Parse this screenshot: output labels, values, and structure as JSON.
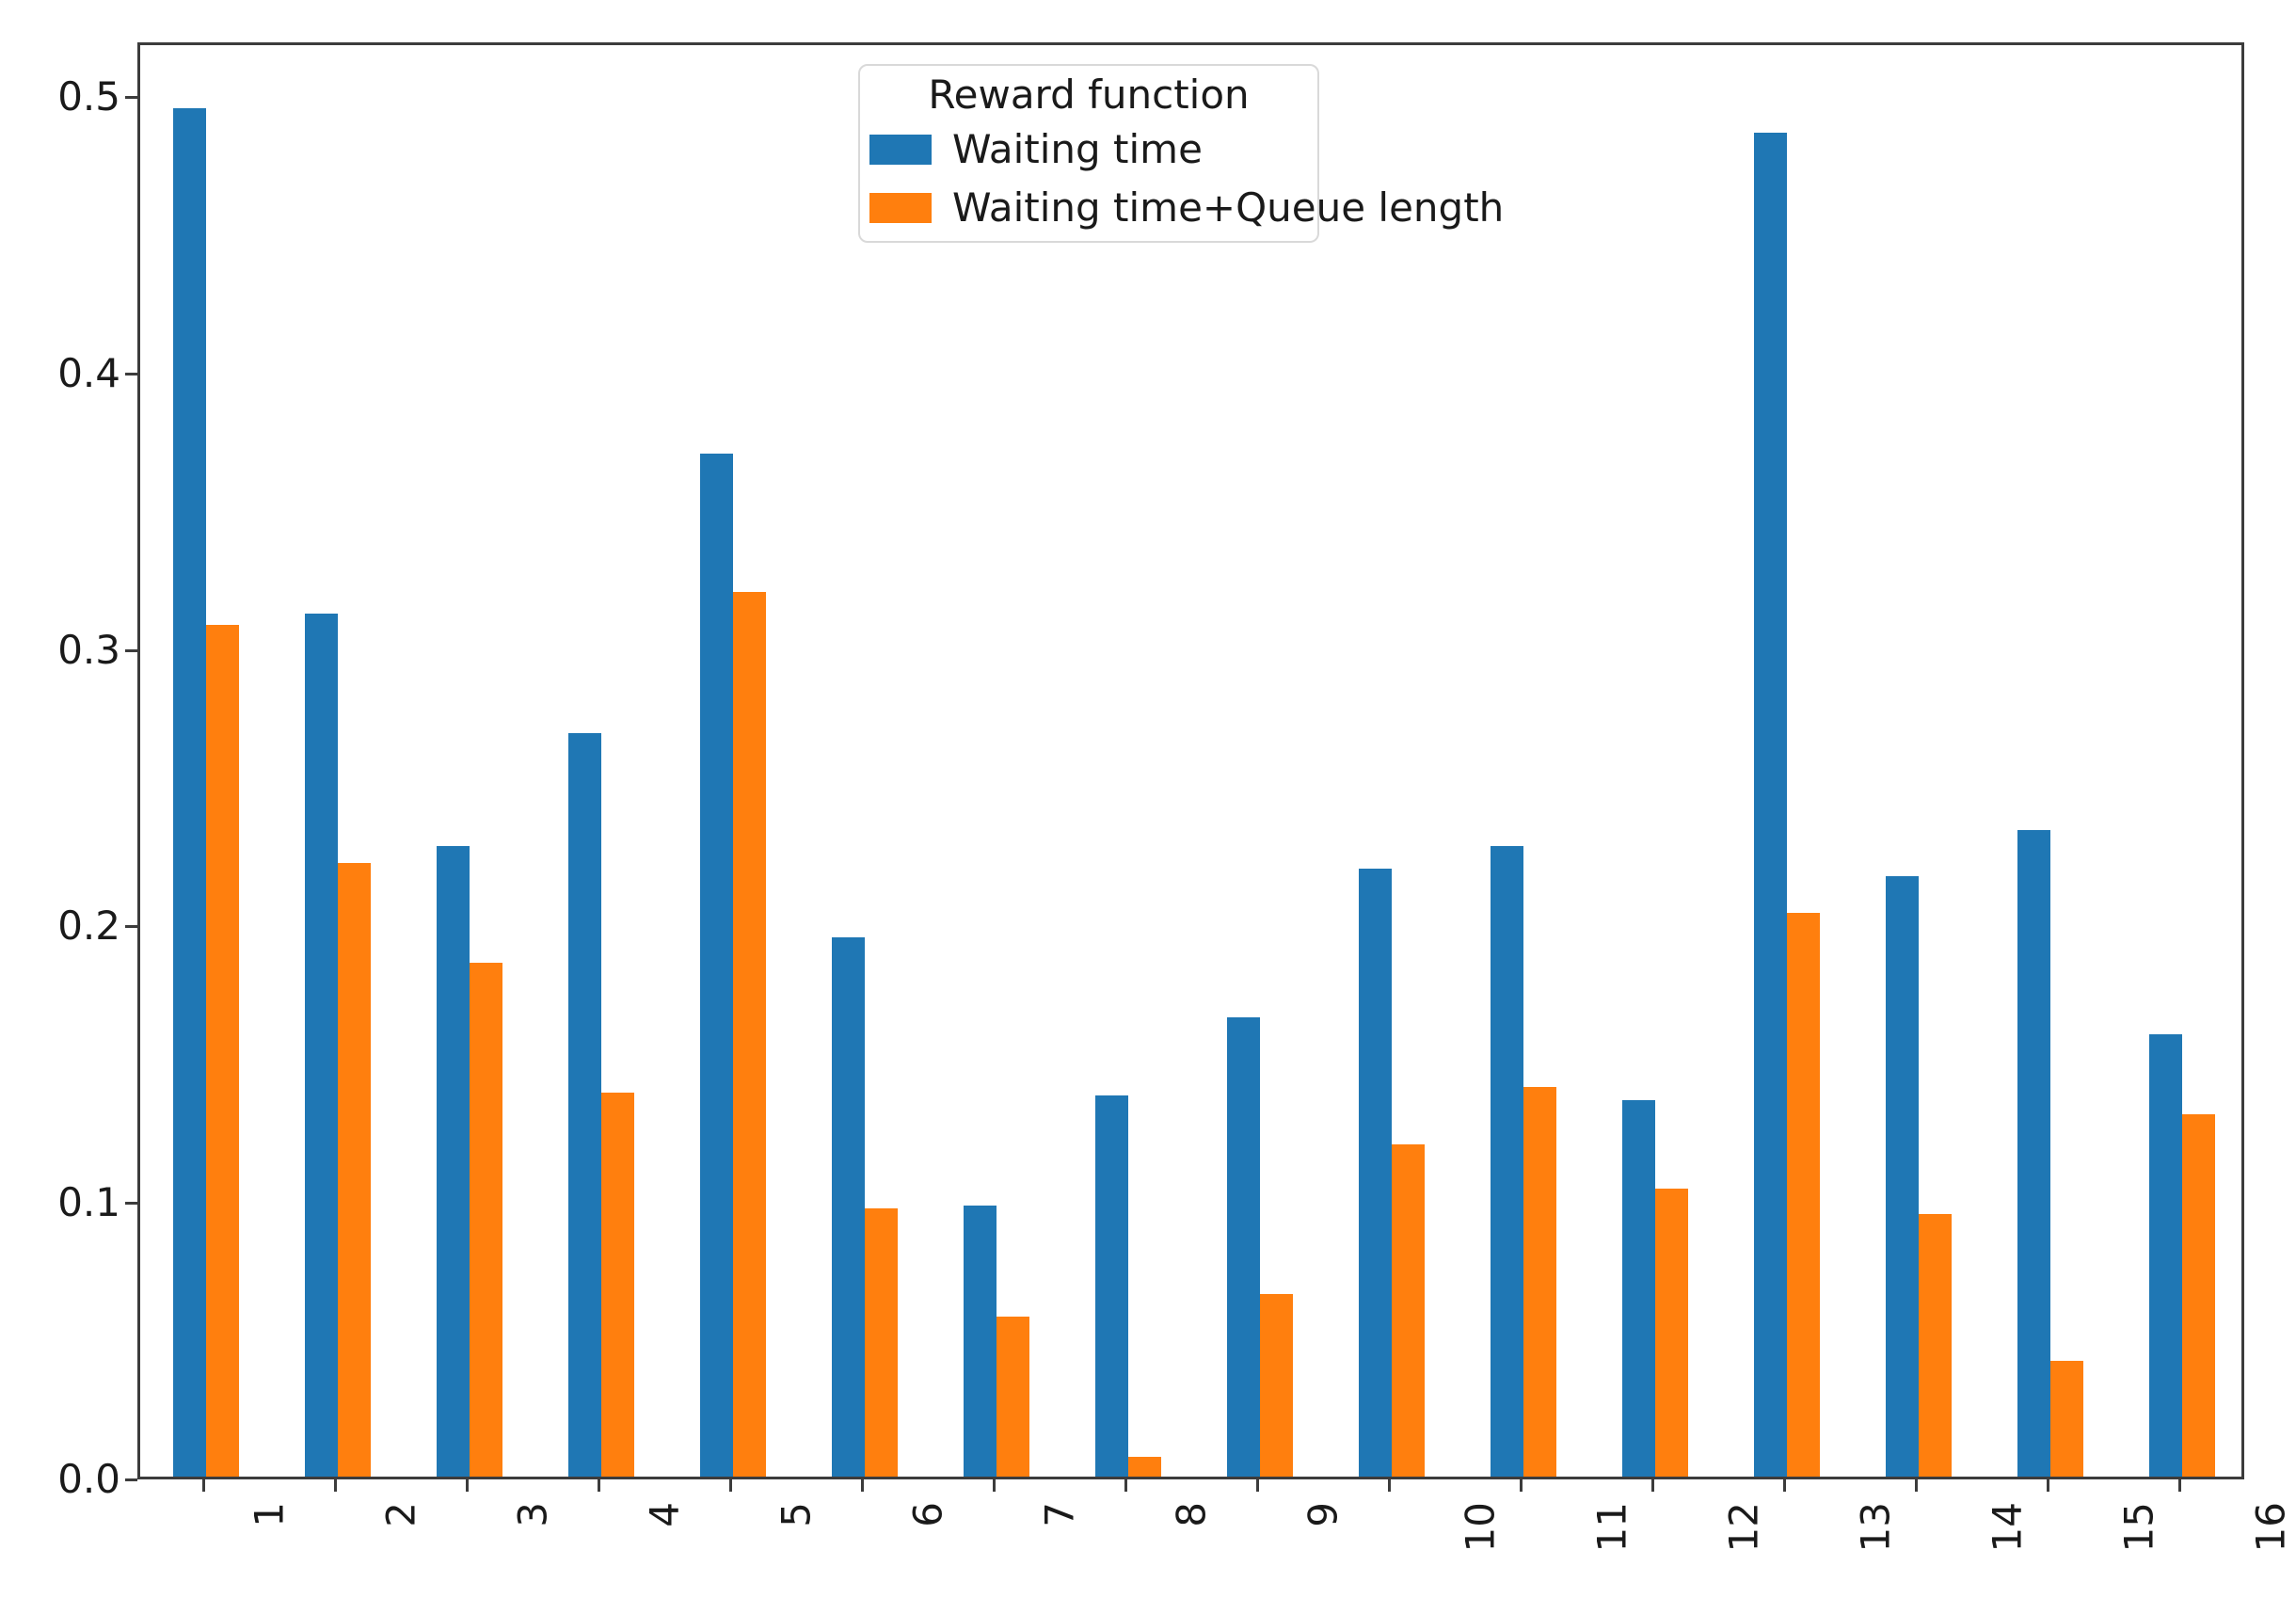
{
  "chart_data": {
    "type": "bar",
    "categories": [
      "1",
      "2",
      "3",
      "4",
      "5",
      "6",
      "7",
      "8",
      "9",
      "10",
      "11",
      "12",
      "13",
      "14",
      "15",
      "16"
    ],
    "series": [
      {
        "name": "Waiting time",
        "color": "#1f77b4",
        "values": [
          0.495,
          0.312,
          0.228,
          0.269,
          0.37,
          0.195,
          0.098,
          0.138,
          0.166,
          0.22,
          0.228,
          0.136,
          0.486,
          0.217,
          0.234,
          0.16
        ]
      },
      {
        "name": "Waiting time+Queue length",
        "color": "#ff7f0e",
        "values": [
          0.308,
          0.222,
          0.186,
          0.139,
          0.32,
          0.097,
          0.058,
          0.007,
          0.066,
          0.12,
          0.141,
          0.104,
          0.204,
          0.095,
          0.042,
          0.131
        ]
      }
    ],
    "legend": {
      "title": "Reward function",
      "position": "upper center"
    },
    "yticks": [
      "0.0",
      "0.1",
      "0.2",
      "0.3",
      "0.4",
      "0.5"
    ],
    "ylim": [
      0,
      0.52
    ],
    "grid": false,
    "xtick_rotation": 90
  }
}
